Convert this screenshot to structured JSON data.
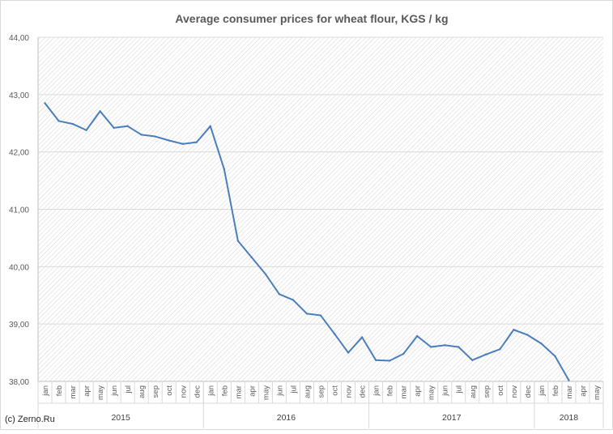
{
  "page": {
    "credit": "(c) Zerno.Ru"
  },
  "colors": {
    "line": "#4a7ebb",
    "grid": "#d9d9d9",
    "hatch": "#d0d0d0",
    "axis": "#bfbfbf",
    "text": "#595959"
  },
  "chart_data": {
    "type": "line",
    "title": "Average consumer prices for wheat flour, KGS / kg",
    "xlabel": "",
    "ylabel": "",
    "ylim": [
      38,
      44
    ],
    "y_ticks": [
      "38,00",
      "39,00",
      "40,00",
      "41,00",
      "42,00",
      "43,00",
      "44,00"
    ],
    "y_tick_values": [
      38,
      39,
      40,
      41,
      42,
      43,
      44
    ],
    "grid": true,
    "legend": "none",
    "categories": [
      "jan",
      "feb",
      "mar",
      "apr",
      "may",
      "jun",
      "jul",
      "aug",
      "sep",
      "oct",
      "nov",
      "dec",
      "jan",
      "feb",
      "mar",
      "apr",
      "may",
      "jun",
      "jul",
      "aug",
      "sep",
      "oct",
      "nov",
      "dec",
      "jan",
      "feb",
      "mar",
      "apr",
      "may",
      "jun",
      "jul",
      "aug",
      "sep",
      "oct",
      "nov",
      "dec",
      "jan",
      "feb",
      "mar",
      "apr",
      "may"
    ],
    "year_groups": [
      {
        "label": "2015",
        "count": 12
      },
      {
        "label": "2016",
        "count": 12
      },
      {
        "label": "2017",
        "count": 12
      },
      {
        "label": "2018",
        "count": 5
      }
    ],
    "series": [
      {
        "values": [
          42.85,
          42.54,
          42.49,
          42.38,
          42.71,
          42.42,
          42.45,
          42.3,
          42.27,
          42.2,
          42.14,
          42.17,
          42.45,
          41.7,
          40.45,
          40.16,
          39.87,
          39.52,
          39.42,
          39.18,
          39.15,
          38.83,
          38.5,
          38.77,
          38.37,
          38.36,
          38.48,
          38.79,
          38.6,
          38.63,
          38.6,
          38.37,
          38.47,
          38.56,
          38.9,
          38.81,
          38.66,
          38.44,
          38.02,
          null,
          null
        ]
      }
    ]
  }
}
